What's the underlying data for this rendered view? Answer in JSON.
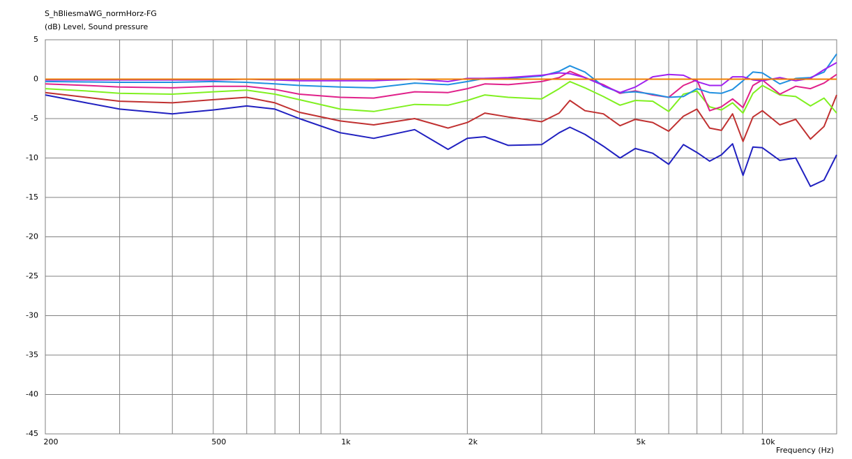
{
  "chart_data": {
    "type": "line",
    "title": "S_hBliesmaWG_normHorz-FG",
    "y_label": "(dB)  Level, Sound pressure",
    "x_label": "Frequency  (Hz)",
    "x_scale": "log",
    "grid": true,
    "xlim": [
      200,
      15000
    ],
    "ylim": [
      -45,
      5
    ],
    "xticks": [
      200,
      500,
      {
        "value": 1000,
        "label": "1k"
      },
      {
        "value": 2000,
        "label": "2k"
      },
      {
        "value": 5000,
        "label": "5k"
      },
      {
        "value": 10000,
        "label": "10k"
      }
    ],
    "xminor": [
      300,
      400,
      600,
      700,
      800,
      900,
      3000,
      4000,
      6000,
      7000,
      8000,
      9000
    ],
    "yticks": [
      5,
      0,
      -5,
      -10,
      -15,
      -20,
      -25,
      -30,
      -35,
      -40,
      -45
    ],
    "x": [
      200,
      250,
      300,
      400,
      500,
      600,
      700,
      800,
      1000,
      1200,
      1500,
      1800,
      2000,
      2200,
      2500,
      3000,
      3300,
      3500,
      3800,
      4200,
      4600,
      5000,
      5500,
      6000,
      6500,
      7000,
      7500,
      8000,
      8500,
      9000,
      9500,
      10000,
      11000,
      12000,
      13000,
      14000,
      15000
    ],
    "series": [
      {
        "color": "#2020c0",
        "values": [
          -2,
          -3,
          -3.8,
          -4.4,
          -3.9,
          -3.4,
          -3.8,
          -5,
          -6.8,
          -7.5,
          -6.4,
          -8.9,
          -7.5,
          -7.3,
          -8.4,
          -8.3,
          -6.8,
          -6.1,
          -7,
          -8.5,
          -10,
          -8.8,
          -9.4,
          -10.8,
          -8.3,
          -9.3,
          -10.4,
          -9.6,
          -8.2,
          -12.2,
          -8.6,
          -8.7,
          -10.3,
          -10,
          -13.6,
          -12.8,
          -9.6
        ]
      },
      {
        "color": "#c03030",
        "values": [
          -1.7,
          -2.3,
          -2.8,
          -3,
          -2.6,
          -2.3,
          -3,
          -4.2,
          -5.3,
          -5.8,
          -5,
          -6.2,
          -5.5,
          -4.3,
          -4.8,
          -5.4,
          -4.3,
          -2.7,
          -4,
          -4.4,
          -5.9,
          -5.1,
          -5.5,
          -6.6,
          -4.7,
          -3.8,
          -6.2,
          -6.5,
          -4.4,
          -7.9,
          -4.8,
          -4,
          -5.8,
          -5.1,
          -7.6,
          -6,
          -2
        ]
      },
      {
        "color": "#80f020",
        "values": [
          -1.2,
          -1.5,
          -1.8,
          -1.9,
          -1.6,
          -1.4,
          -1.9,
          -2.6,
          -3.8,
          -4.1,
          -3.2,
          -3.3,
          -2.7,
          -2,
          -2.3,
          -2.5,
          -1.2,
          -0.3,
          -1.1,
          -2.2,
          -3.3,
          -2.7,
          -2.8,
          -4.1,
          -1.9,
          -1.5,
          -3.5,
          -3.9,
          -3,
          -4.3,
          -1.8,
          -0.8,
          -2,
          -2.2,
          -3.4,
          -2.4,
          -4.3
        ]
      },
      {
        "color": "#e0208a",
        "values": [
          -0.6,
          -0.8,
          -1,
          -1.1,
          -0.9,
          -0.9,
          -1.3,
          -1.9,
          -2.3,
          -2.4,
          -1.6,
          -1.7,
          -1.2,
          -0.6,
          -0.7,
          -0.3,
          0.2,
          1,
          0.2,
          -0.7,
          -1.8,
          -1.5,
          -2,
          -2.3,
          -0.8,
          -0.1,
          -4,
          -3.5,
          -2.5,
          -3.6,
          -0.8,
          -0.1,
          -1.9,
          -0.9,
          -1.2,
          -0.5,
          0.6
        ]
      },
      {
        "color": "#2090e0",
        "values": [
          -0.3,
          -0.35,
          -0.4,
          -0.4,
          -0.3,
          -0.4,
          -0.6,
          -0.8,
          -1,
          -1.1,
          -0.5,
          -0.7,
          -0.3,
          0.1,
          0.1,
          0.4,
          1,
          1.7,
          0.9,
          -0.9,
          -1.7,
          -1.6,
          -1.9,
          -2.3,
          -2.2,
          -1.2,
          -1.7,
          -1.8,
          -1.3,
          -0.2,
          0.9,
          0.8,
          -0.6,
          0.1,
          0.2,
          0.9,
          3.2
        ]
      },
      {
        "color": "#a020f0",
        "values": [
          -0.1,
          -0.1,
          -0.1,
          -0.1,
          -0.1,
          0,
          -0.1,
          -0.2,
          -0.2,
          -0.2,
          0,
          -0.3,
          0.1,
          0.1,
          0.2,
          0.5,
          0.8,
          0.7,
          0.2,
          -0.8,
          -1.7,
          -1,
          0.3,
          0.6,
          0.5,
          -0.3,
          -0.8,
          -0.8,
          0.3,
          0.3,
          -0.1,
          -0.2,
          0.2,
          -0.2,
          0.1,
          1.2,
          2.1
        ]
      },
      {
        "color": "#f08000",
        "values": [
          0,
          0,
          0,
          0,
          0,
          0,
          0,
          0,
          0,
          0,
          0,
          0,
          0,
          0,
          0,
          0,
          0,
          0,
          0,
          0,
          0,
          0,
          0,
          0,
          0,
          0,
          0,
          0,
          0,
          0,
          0,
          0,
          0,
          0,
          0,
          0,
          0
        ]
      }
    ]
  }
}
